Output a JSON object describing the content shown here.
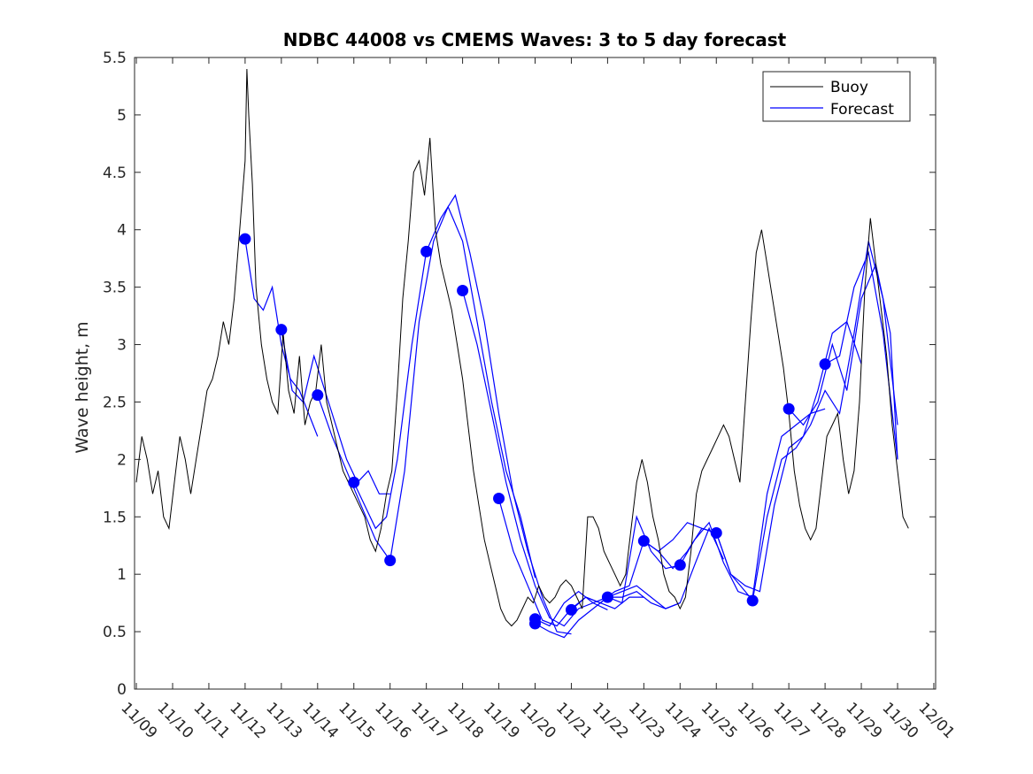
{
  "chart_data": {
    "type": "line",
    "title": "NDBC 44008 vs CMEMS Waves: 3 to 5 day forecast",
    "xlabel": "",
    "ylabel": "Wave height, m",
    "xlim": [
      -0.05,
      22.05
    ],
    "ylim": [
      0,
      5.5
    ],
    "x_unit": "days since 11/09",
    "xticks": [
      0,
      1,
      2,
      3,
      4,
      5,
      6,
      7,
      8,
      9,
      10,
      11,
      12,
      13,
      14,
      15,
      16,
      17,
      18,
      19,
      20,
      21,
      22
    ],
    "xtick_labels": [
      "11/09",
      "11/10",
      "11/11",
      "11/12",
      "11/13",
      "11/14",
      "11/15",
      "11/16",
      "11/17",
      "11/18",
      "11/19",
      "11/20",
      "11/21",
      "11/22",
      "11/23",
      "11/24",
      "11/25",
      "11/26",
      "11/27",
      "11/28",
      "11/29",
      "11/30",
      "12/01"
    ],
    "yticks": [
      0,
      0.5,
      1,
      1.5,
      2,
      2.5,
      3,
      3.5,
      4,
      4.5,
      5,
      5.5
    ],
    "ytick_labels": [
      "0",
      "0.5",
      "1",
      "1.5",
      "2",
      "2.5",
      "3",
      "3.5",
      "4",
      "4.5",
      "5",
      "5.5"
    ],
    "legend": {
      "position": "top-right",
      "entries": [
        {
          "label": "Buoy",
          "color": "#000000"
        },
        {
          "label": "Forecast",
          "color": "#0000ff"
        }
      ]
    },
    "series": [
      {
        "name": "Buoy",
        "color": "#000000",
        "x": [
          0.0,
          0.15,
          0.3,
          0.45,
          0.6,
          0.75,
          0.9,
          1.05,
          1.2,
          1.35,
          1.5,
          1.65,
          1.8,
          1.95,
          2.1,
          2.25,
          2.4,
          2.55,
          2.7,
          2.85,
          3.0,
          3.05,
          3.1,
          3.2,
          3.3,
          3.45,
          3.6,
          3.75,
          3.9,
          4.05,
          4.2,
          4.35,
          4.5,
          4.65,
          4.8,
          4.95,
          5.1,
          5.25,
          5.4,
          5.55,
          5.7,
          5.85,
          6.0,
          6.15,
          6.3,
          6.45,
          6.6,
          6.75,
          6.9,
          7.05,
          7.2,
          7.35,
          7.5,
          7.65,
          7.8,
          7.95,
          8.1,
          8.25,
          8.4,
          8.55,
          8.7,
          8.85,
          9.0,
          9.15,
          9.3,
          9.45,
          9.6,
          9.75,
          9.9,
          10.05,
          10.2,
          10.35,
          10.5,
          10.65,
          10.8,
          10.95,
          11.1,
          11.25,
          11.4,
          11.55,
          11.7,
          11.85,
          12.0,
          12.15,
          12.3,
          12.45,
          12.6,
          12.75,
          12.9,
          13.05,
          13.2,
          13.35,
          13.5,
          13.65,
          13.8,
          13.95,
          14.1,
          14.25,
          14.4,
          14.55,
          14.7,
          14.85,
          15.0,
          15.15,
          15.3,
          15.45,
          15.6,
          15.75,
          15.9,
          16.05,
          16.2,
          16.35,
          16.5,
          16.65,
          16.8,
          16.95,
          17.1,
          17.25,
          17.4,
          17.55,
          17.7,
          17.85,
          18.0,
          18.15,
          18.3,
          18.45,
          18.6,
          18.75,
          18.9,
          19.05,
          19.2,
          19.35,
          19.5,
          19.65,
          19.8,
          19.95,
          20.1,
          20.25,
          20.4,
          20.55,
          20.7,
          20.85,
          21.0,
          21.15,
          21.3
        ],
        "y": [
          1.8,
          2.2,
          2.0,
          1.7,
          1.9,
          1.5,
          1.4,
          1.8,
          2.2,
          2.0,
          1.7,
          2.0,
          2.3,
          2.6,
          2.7,
          2.9,
          3.2,
          3.0,
          3.4,
          4.0,
          4.6,
          5.4,
          5.0,
          4.4,
          3.5,
          3.0,
          2.7,
          2.5,
          2.4,
          3.1,
          2.6,
          2.4,
          2.9,
          2.3,
          2.5,
          2.6,
          3.0,
          2.5,
          2.3,
          2.1,
          1.9,
          1.8,
          1.7,
          1.6,
          1.5,
          1.3,
          1.2,
          1.4,
          1.7,
          1.9,
          2.6,
          3.4,
          3.9,
          4.5,
          4.6,
          4.3,
          4.8,
          4.0,
          3.7,
          3.5,
          3.3,
          3.0,
          2.7,
          2.3,
          1.9,
          1.6,
          1.3,
          1.1,
          0.9,
          0.7,
          0.6,
          0.55,
          0.6,
          0.7,
          0.8,
          0.75,
          0.9,
          0.8,
          0.75,
          0.8,
          0.9,
          0.95,
          0.9,
          0.8,
          0.7,
          1.5,
          1.5,
          1.4,
          1.2,
          1.1,
          1.0,
          0.9,
          1.0,
          1.4,
          1.8,
          2.0,
          1.8,
          1.5,
          1.3,
          1.0,
          0.85,
          0.8,
          0.7,
          0.8,
          1.2,
          1.7,
          1.9,
          2.0,
          2.1,
          2.2,
          2.3,
          2.2,
          2.0,
          1.8,
          2.5,
          3.2,
          3.8,
          4.0,
          3.7,
          3.4,
          3.1,
          2.8,
          2.4,
          1.9,
          1.6,
          1.4,
          1.3,
          1.4,
          1.8,
          2.2,
          2.3,
          2.4,
          2.0,
          1.7,
          1.9,
          2.5,
          3.5,
          4.1,
          3.7,
          3.3,
          2.9,
          2.3,
          1.9,
          1.5,
          1.4
        ]
      },
      {
        "name": "Forecast",
        "color": "#0000ff",
        "segments": [
          {
            "x": [
              3.0,
              3.25,
              3.5,
              3.75,
              4.0,
              4.25,
              4.5,
              4.75,
              5.0
            ],
            "y": [
              3.92,
              3.4,
              3.3,
              3.5,
              3.0,
              2.7,
              2.6,
              2.4,
              2.2
            ]
          },
          {
            "x": [
              4.0,
              4.3,
              4.6,
              4.9,
              5.2,
              5.5,
              5.8,
              6.1,
              6.4,
              6.7,
              7.0
            ],
            "y": [
              3.13,
              2.6,
              2.5,
              2.9,
              2.6,
              2.3,
              2.0,
              1.8,
              1.9,
              1.7,
              1.7
            ]
          },
          {
            "x": [
              5.0,
              5.4,
              5.8,
              6.2,
              6.6,
              7.0
            ],
            "y": [
              2.56,
              2.2,
              1.9,
              1.6,
              1.3,
              1.12
            ]
          },
          {
            "x": [
              6.0,
              6.3,
              6.6,
              6.9,
              7.2,
              7.6,
              8.0
            ],
            "y": [
              1.8,
              1.6,
              1.4,
              1.5,
              2.0,
              3.0,
              3.81
            ]
          },
          {
            "x": [
              7.0,
              7.4,
              7.8,
              8.2,
              8.6,
              9.0,
              9.4,
              9.8,
              10.2,
              10.6,
              11.0
            ],
            "y": [
              1.12,
              1.9,
              3.2,
              3.9,
              4.2,
              3.9,
              3.2,
              2.5,
              1.9,
              1.5,
              0.97
            ]
          },
          {
            "x": [
              8.0,
              8.4,
              8.8,
              9.2,
              9.6,
              10.0,
              10.4,
              10.8,
              11.2,
              11.6,
              12.0
            ],
            "y": [
              3.81,
              4.1,
              4.3,
              3.8,
              3.2,
              2.4,
              1.7,
              1.2,
              0.8,
              0.5,
              0.48
            ]
          },
          {
            "x": [
              9.0,
              9.4,
              9.8,
              10.2,
              10.6,
              11.0,
              11.4,
              11.8,
              12.2,
              12.6,
              13.0
            ],
            "y": [
              3.47,
              3.0,
              2.4,
              1.8,
              1.3,
              0.9,
              0.62,
              0.55,
              0.7,
              0.75,
              0.69
            ]
          },
          {
            "x": [
              10.0,
              10.4,
              10.8,
              11.2,
              11.6,
              12.0,
              12.4,
              12.8,
              13.2,
              13.6,
              14.0
            ],
            "y": [
              1.66,
              1.2,
              0.9,
              0.6,
              0.55,
              0.7,
              0.8,
              0.75,
              0.7,
              0.8,
              0.8
            ]
          },
          {
            "x": [
              11.0,
              11.4,
              11.8,
              12.2,
              12.6,
              13.0,
              13.4,
              13.8,
              14.2,
              14.6,
              15.0
            ],
            "y": [
              0.61,
              0.55,
              0.75,
              0.85,
              0.75,
              0.8,
              0.85,
              0.9,
              0.8,
              0.7,
              0.75
            ]
          },
          {
            "x": [
              11.0,
              11.4,
              11.8,
              12.2,
              12.6,
              13.0,
              13.4,
              13.8,
              14.2,
              14.6,
              15.0
            ],
            "y": [
              0.57,
              0.5,
              0.45,
              0.6,
              0.7,
              0.8,
              0.75,
              1.5,
              1.2,
              1.05,
              1.08
            ]
          },
          {
            "x": [
              12.0,
              12.4,
              12.8,
              13.2,
              13.6,
              14.0,
              14.4,
              14.8,
              15.2,
              15.6,
              16.0
            ],
            "y": [
              0.69,
              0.8,
              0.75,
              0.85,
              0.9,
              1.29,
              1.2,
              1.3,
              1.45,
              1.4,
              1.36
            ]
          },
          {
            "x": [
              13.0,
              13.4,
              13.8,
              14.2,
              14.6,
              15.0,
              15.4,
              15.8,
              16.2
            ],
            "y": [
              0.8,
              0.8,
              0.85,
              0.75,
              0.7,
              0.75,
              1.08,
              1.4,
              1.13
            ]
          },
          {
            "x": [
              14.0,
              14.4,
              14.8,
              15.2,
              15.6,
              16.0,
              16.4,
              16.8,
              17.0
            ],
            "y": [
              1.29,
              1.2,
              1.05,
              1.2,
              1.4,
              1.36,
              1.0,
              0.85,
              0.77
            ]
          },
          {
            "x": [
              15.0,
              15.4,
              15.8,
              16.2,
              16.6,
              17.0,
              17.4,
              17.8,
              18.2,
              18.6,
              19.0
            ],
            "y": [
              1.08,
              1.3,
              1.45,
              1.1,
              0.85,
              0.8,
              1.7,
              2.2,
              2.3,
              2.4,
              2.44
            ]
          },
          {
            "x": [
              16.0,
              16.4,
              16.8,
              17.2,
              17.6,
              18.0,
              18.4,
              18.8,
              19.2,
              19.6,
              20.0
            ],
            "y": [
              1.36,
              1.0,
              0.9,
              0.85,
              1.6,
              2.1,
              2.2,
              2.6,
              3.1,
              3.2,
              2.83
            ]
          },
          {
            "x": [
              17.0,
              17.4,
              17.8,
              18.2,
              18.6,
              19.0,
              19.4,
              19.8,
              20.2,
              20.6,
              21.0
            ],
            "y": [
              0.77,
              1.5,
              2.0,
              2.1,
              2.3,
              2.6,
              2.4,
              3.1,
              3.9,
              3.4,
              2.3
            ]
          },
          {
            "x": [
              18.0,
              18.4,
              18.8,
              19.2,
              19.6,
              20.0,
              20.4,
              20.8,
              21.0
            ],
            "y": [
              2.44,
              2.3,
              2.5,
              3.0,
              2.6,
              3.4,
              3.7,
              3.1,
              2.0
            ]
          },
          {
            "x": [
              19.0,
              19.4,
              19.8,
              20.2,
              20.6,
              21.0
            ],
            "y": [
              2.83,
              2.9,
              3.5,
              3.8,
              3.1,
              2.0
            ]
          }
        ],
        "markers": [
          {
            "x": 3.0,
            "y": 3.92
          },
          {
            "x": 4.0,
            "y": 3.13
          },
          {
            "x": 5.0,
            "y": 2.56
          },
          {
            "x": 6.0,
            "y": 1.8
          },
          {
            "x": 7.0,
            "y": 1.12
          },
          {
            "x": 8.0,
            "y": 3.81
          },
          {
            "x": 9.0,
            "y": 3.47
          },
          {
            "x": 10.0,
            "y": 1.66
          },
          {
            "x": 11.0,
            "y": 0.61
          },
          {
            "x": 11.0,
            "y": 0.57
          },
          {
            "x": 12.0,
            "y": 0.69
          },
          {
            "x": 13.0,
            "y": 0.8
          },
          {
            "x": 14.0,
            "y": 1.29
          },
          {
            "x": 15.0,
            "y": 1.08
          },
          {
            "x": 16.0,
            "y": 1.36
          },
          {
            "x": 17.0,
            "y": 0.77
          },
          {
            "x": 18.0,
            "y": 2.44
          },
          {
            "x": 19.0,
            "y": 2.83
          }
        ]
      }
    ]
  }
}
